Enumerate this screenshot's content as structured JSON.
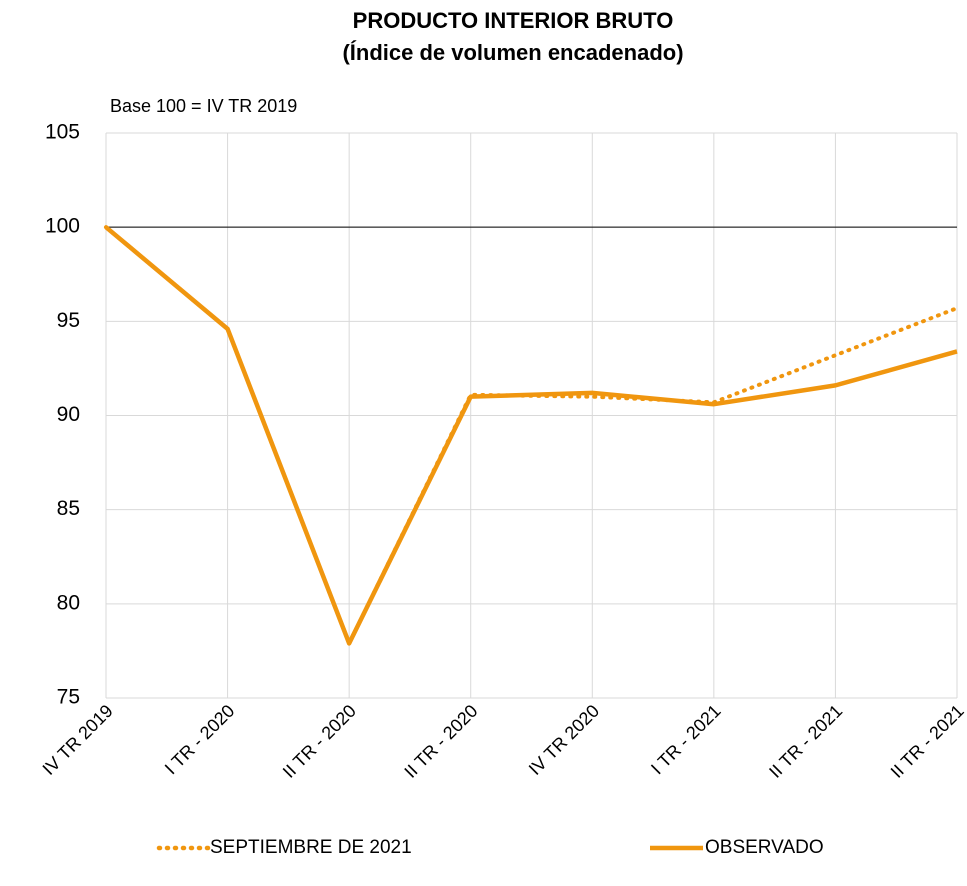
{
  "chart_data": {
    "type": "line",
    "title": "PRODUCTO INTERIOR BRUTO",
    "subtitle": "(Índice de volumen encadenado)",
    "annotation": "Base 100 = IV TR 2019",
    "categories": [
      "IV TR 2019",
      "I TR - 2020",
      "II TR - 2020",
      "II TR - 2020",
      "IV TR 2020",
      "I TR - 2021",
      "II TR - 2021",
      "II TR - 2021"
    ],
    "series": [
      {
        "name": "SEPTIEMBRE DE 2021",
        "color": "#f0960f",
        "style": "dotted",
        "values": [
          100,
          94.6,
          77.9,
          91.1,
          91.0,
          90.7,
          93.2,
          95.7
        ]
      },
      {
        "name": "OBSERVADO",
        "color": "#f0960f",
        "style": "solid",
        "values": [
          100,
          94.6,
          77.9,
          91.0,
          91.2,
          90.6,
          91.6,
          93.4
        ]
      }
    ],
    "ylim": [
      75,
      105
    ],
    "yticks": [
      75,
      80,
      85,
      90,
      95,
      100,
      105
    ],
    "reference_line": 100,
    "grid": true
  }
}
